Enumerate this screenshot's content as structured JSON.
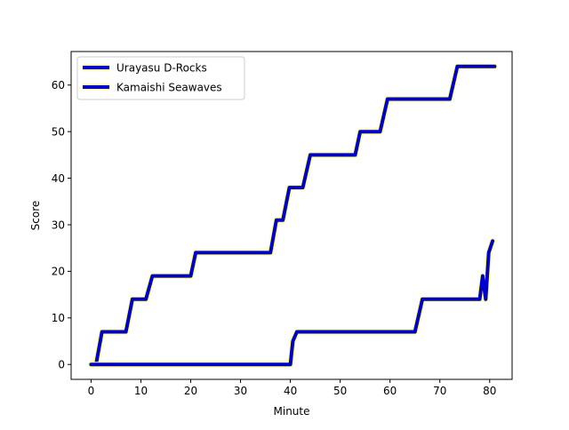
{
  "chart_data": {
    "type": "line",
    "title": "",
    "xlabel": "Minute",
    "ylabel": "Score",
    "xlim": [
      -4.0,
      84.5
    ],
    "ylim": [
      -3.2,
      67.2
    ],
    "x_ticks": [
      0,
      10,
      20,
      30,
      40,
      50,
      60,
      70,
      80
    ],
    "y_ticks": [
      0,
      10,
      20,
      30,
      40,
      50,
      60
    ],
    "grid": false,
    "legend_position": "upper left",
    "series": [
      {
        "name": "Urayasu D-Rocks",
        "color": "#0000cc",
        "outline_color": "#ffff66",
        "points": [
          [
            0,
            0
          ],
          [
            1,
            0
          ],
          [
            2.2,
            7
          ],
          [
            7,
            7
          ],
          [
            8.3,
            14
          ],
          [
            11,
            14
          ],
          [
            12.3,
            19
          ],
          [
            20,
            19
          ],
          [
            21,
            24
          ],
          [
            36,
            24
          ],
          [
            37.2,
            31
          ],
          [
            38.5,
            31
          ],
          [
            39.8,
            38
          ],
          [
            42.5,
            38
          ],
          [
            44,
            45
          ],
          [
            53,
            45
          ],
          [
            54,
            50
          ],
          [
            58,
            50
          ],
          [
            59.5,
            57
          ],
          [
            72,
            57
          ],
          [
            73.5,
            64
          ],
          [
            81,
            64
          ]
        ]
      },
      {
        "name": "Kamaishi Seawaves",
        "color": "#0000cc",
        "outline_color": "#ffff66",
        "points": [
          [
            0,
            0
          ],
          [
            40,
            0
          ],
          [
            40.5,
            5
          ],
          [
            41.3,
            7
          ],
          [
            65,
            7
          ],
          [
            66.5,
            14
          ],
          [
            78,
            14
          ],
          [
            78.6,
            19
          ],
          [
            79.2,
            14
          ],
          [
            79.8,
            24
          ],
          [
            80.6,
            26.5
          ]
        ]
      }
    ]
  }
}
